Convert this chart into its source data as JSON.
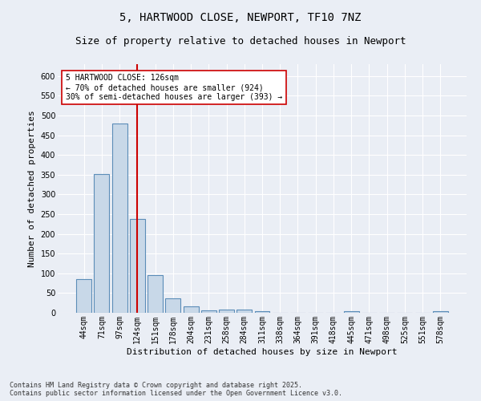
{
  "title": "5, HARTWOOD CLOSE, NEWPORT, TF10 7NZ",
  "subtitle": "Size of property relative to detached houses in Newport",
  "xlabel": "Distribution of detached houses by size in Newport",
  "ylabel": "Number of detached properties",
  "categories": [
    "44sqm",
    "71sqm",
    "97sqm",
    "124sqm",
    "151sqm",
    "178sqm",
    "204sqm",
    "231sqm",
    "258sqm",
    "284sqm",
    "311sqm",
    "338sqm",
    "364sqm",
    "391sqm",
    "418sqm",
    "445sqm",
    "471sqm",
    "498sqm",
    "525sqm",
    "551sqm",
    "578sqm"
  ],
  "values": [
    85,
    352,
    480,
    237,
    96,
    37,
    16,
    7,
    8,
    8,
    4,
    0,
    0,
    0,
    0,
    5,
    0,
    0,
    0,
    0,
    5
  ],
  "bar_color": "#c8d8e8",
  "bar_edge_color": "#5b8db8",
  "vline_x": 3,
  "vline_color": "#cc0000",
  "annotation_text": "5 HARTWOOD CLOSE: 126sqm\n← 70% of detached houses are smaller (924)\n30% of semi-detached houses are larger (393) →",
  "annotation_box_color": "#ffffff",
  "annotation_box_edge": "#cc0000",
  "ylim": [
    0,
    630
  ],
  "yticks": [
    0,
    50,
    100,
    150,
    200,
    250,
    300,
    350,
    400,
    450,
    500,
    550,
    600
  ],
  "background_color": "#eaeef5",
  "plot_bg_color": "#eaeef5",
  "footer": "Contains HM Land Registry data © Crown copyright and database right 2025.\nContains public sector information licensed under the Open Government Licence v3.0.",
  "title_fontsize": 10,
  "subtitle_fontsize": 9,
  "xlabel_fontsize": 8,
  "ylabel_fontsize": 8,
  "tick_fontsize": 7,
  "footer_fontsize": 6,
  "annotation_fontsize": 7
}
